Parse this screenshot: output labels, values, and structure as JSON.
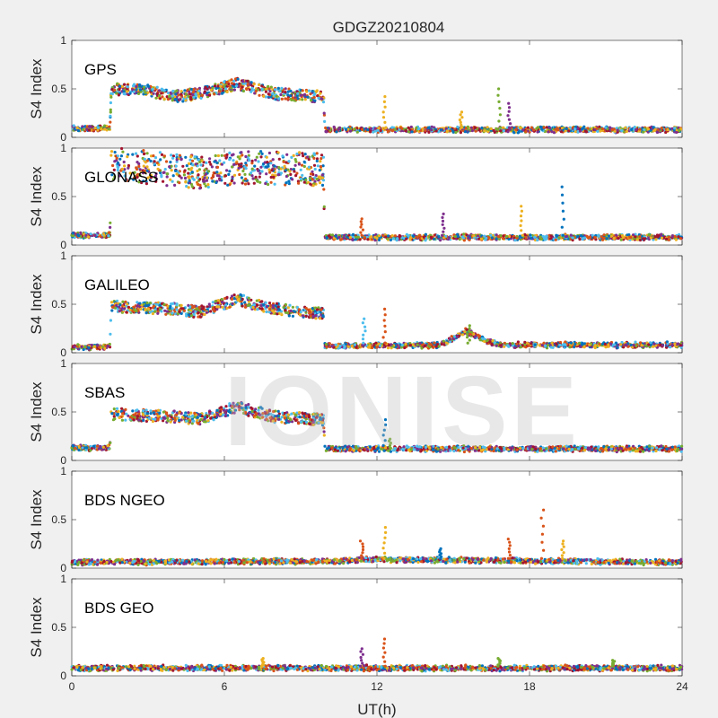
{
  "figure": {
    "title": "GDGZ20210804",
    "xlabel": "UT(h)",
    "ylabel": "S4 Index",
    "watermark": "IONISE",
    "x_ticks": [
      0,
      6,
      12,
      18,
      24
    ],
    "y_ticks": [
      0,
      0.5,
      1
    ],
    "colors": [
      "#0072BD",
      "#D95319",
      "#EDB120",
      "#7E2F8E",
      "#77AC30",
      "#4DBEEE",
      "#A2142F"
    ]
  },
  "chart_data": [
    {
      "type": "scatter",
      "title": "GPS",
      "xlim": [
        0,
        24
      ],
      "ylim": [
        0,
        1
      ],
      "profile": [
        [
          0,
          0.09
        ],
        [
          1.5,
          0.09
        ],
        [
          1.55,
          0.5
        ],
        [
          3,
          0.48
        ],
        [
          4,
          0.42
        ],
        [
          5,
          0.45
        ],
        [
          6.5,
          0.55
        ],
        [
          8,
          0.45
        ],
        [
          9.9,
          0.42
        ],
        [
          9.95,
          0.08
        ],
        [
          24,
          0.08
        ]
      ],
      "spikes": [
        [
          12.3,
          0.42
        ],
        [
          15.3,
          0.26
        ],
        [
          16.8,
          0.5
        ],
        [
          17.2,
          0.35
        ]
      ]
    },
    {
      "type": "scatter",
      "title": "GLONASS",
      "xlim": [
        0,
        24
      ],
      "ylim": [
        0,
        1
      ],
      "profile": [
        [
          0,
          0.1
        ],
        [
          1.5,
          0.1
        ],
        [
          1.55,
          0.85
        ],
        [
          3,
          0.8
        ],
        [
          5,
          0.75
        ],
        [
          7,
          0.8
        ],
        [
          9.9,
          0.78
        ],
        [
          9.95,
          0.08
        ],
        [
          24,
          0.08
        ]
      ],
      "spikes": [
        [
          11.4,
          0.27
        ],
        [
          14.6,
          0.32
        ],
        [
          17.7,
          0.4
        ],
        [
          19.3,
          0.6
        ]
      ]
    },
    {
      "type": "scatter",
      "title": "GALILEO",
      "xlim": [
        0,
        24
      ],
      "ylim": [
        0,
        1
      ],
      "profile": [
        [
          0,
          0.06
        ],
        [
          1.5,
          0.06
        ],
        [
          1.55,
          0.48
        ],
        [
          4,
          0.45
        ],
        [
          5,
          0.42
        ],
        [
          6.5,
          0.55
        ],
        [
          8,
          0.45
        ],
        [
          9.9,
          0.4
        ],
        [
          9.95,
          0.07
        ],
        [
          14.5,
          0.08
        ],
        [
          15.5,
          0.22
        ],
        [
          16.3,
          0.12
        ],
        [
          17,
          0.08
        ],
        [
          24,
          0.08
        ]
      ],
      "spikes": [
        [
          11.5,
          0.35
        ],
        [
          12.3,
          0.45
        ],
        [
          15.6,
          0.28
        ]
      ]
    },
    {
      "type": "scatter",
      "title": "SBAS",
      "xlim": [
        0,
        24
      ],
      "ylim": [
        0,
        1
      ],
      "profile": [
        [
          0,
          0.13
        ],
        [
          1.5,
          0.13
        ],
        [
          1.55,
          0.48
        ],
        [
          4,
          0.45
        ],
        [
          5,
          0.43
        ],
        [
          6.5,
          0.55
        ],
        [
          8,
          0.45
        ],
        [
          9.9,
          0.42
        ],
        [
          9.95,
          0.12
        ],
        [
          24,
          0.12
        ]
      ],
      "spikes": [
        [
          12.3,
          0.42
        ],
        [
          12.5,
          0.22
        ]
      ]
    },
    {
      "type": "scatter",
      "title": "BDS NGEO",
      "xlim": [
        0,
        24
      ],
      "ylim": [
        0,
        1
      ],
      "profile": [
        [
          0,
          0.06
        ],
        [
          10,
          0.07
        ],
        [
          12,
          0.09
        ],
        [
          16,
          0.08
        ],
        [
          24,
          0.06
        ]
      ],
      "spikes": [
        [
          11.4,
          0.28
        ],
        [
          12.3,
          0.42
        ],
        [
          14.5,
          0.2
        ],
        [
          17.2,
          0.3
        ],
        [
          18.5,
          0.6
        ],
        [
          19.3,
          0.28
        ]
      ]
    },
    {
      "type": "scatter",
      "title": "BDS GEO",
      "xlim": [
        0,
        24
      ],
      "ylim": [
        0,
        1
      ],
      "profile": [
        [
          0,
          0.08
        ],
        [
          24,
          0.08
        ]
      ],
      "spikes": [
        [
          7.5,
          0.18
        ],
        [
          11.4,
          0.28
        ],
        [
          12.3,
          0.38
        ],
        [
          16.8,
          0.18
        ],
        [
          21.3,
          0.16
        ]
      ]
    }
  ]
}
